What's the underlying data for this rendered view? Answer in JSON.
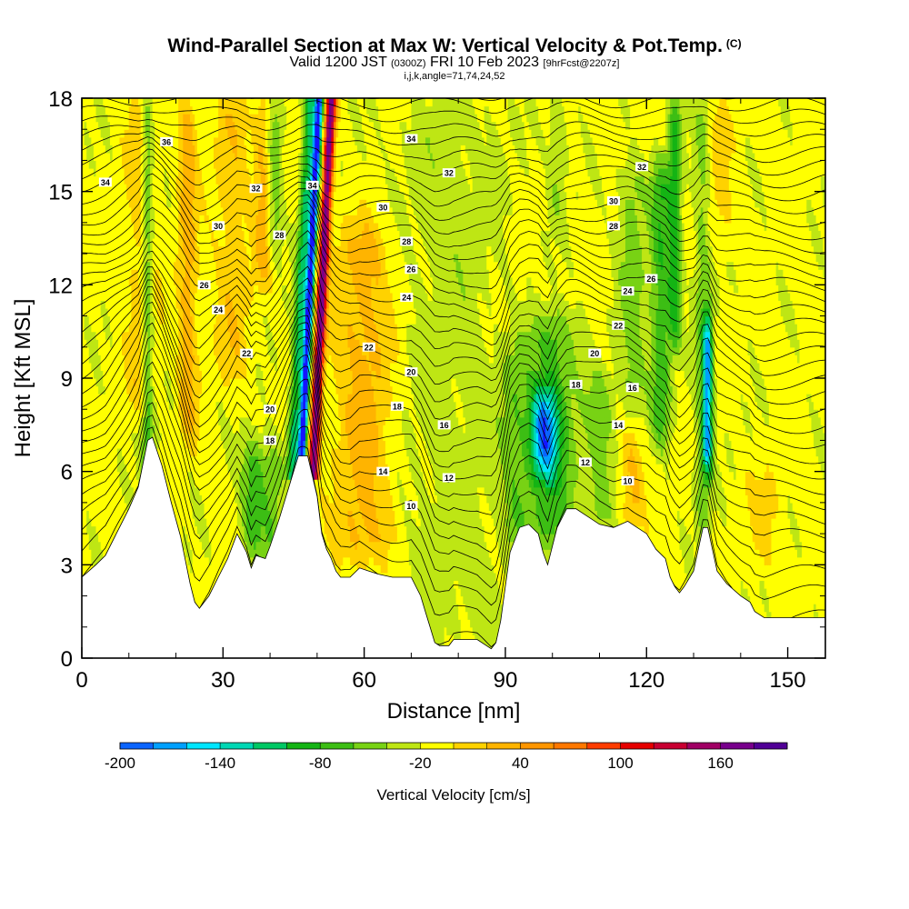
{
  "title": {
    "main": "Wind-Parallel Section at Max W: Vertical Velocity & Pot.Temp.",
    "copyright": "(C)",
    "valid_prefix": "Valid 1200 JST",
    "valid_utc": "(0300Z)",
    "valid_date": "FRI 10 Feb 2023",
    "forecast": "[9hrFcst@2207z]",
    "indices": "i,j,k,angle=71,74,24,52"
  },
  "colors": {
    "colorbar": [
      "#1414ff",
      "#0a64ff",
      "#00a0ff",
      "#00e6ff",
      "#00d7b4",
      "#00c864",
      "#14b414",
      "#3cbe14",
      "#78d214",
      "#bee614",
      "#ffff00",
      "#ffd200",
      "#ffb400",
      "#ff9600",
      "#ff7800",
      "#ff3c00",
      "#e60000",
      "#c80032",
      "#a00064",
      "#78008c",
      "#500096"
    ],
    "terrain": "#ffffff",
    "contour": "#000000"
  },
  "chart_data": {
    "type": "heatmap",
    "field": "Vertical Velocity",
    "overlay": "Potential temperature contours",
    "xlabel": "Distance [nm]",
    "ylabel": "Height [Kft MSL]",
    "xlim": [
      0,
      158
    ],
    "ylim": [
      0,
      18
    ],
    "x_ticks": [
      0,
      30,
      60,
      90,
      120,
      150
    ],
    "y_ticks": [
      0,
      3,
      6,
      9,
      12,
      15,
      18
    ],
    "colorbar": {
      "label": "Vertical Velocity [cm/s]",
      "min": -200,
      "max": 200,
      "step": 20,
      "tick_labels": [
        "-200",
        "-140",
        "-80",
        "-20",
        "40",
        "100",
        "160"
      ]
    },
    "terrain_profile": [
      [
        0,
        2.6
      ],
      [
        3,
        3.0
      ],
      [
        5,
        3.3
      ],
      [
        8,
        4.2
      ],
      [
        10,
        4.8
      ],
      [
        12,
        5.5
      ],
      [
        14,
        7.0
      ],
      [
        15,
        7.1
      ],
      [
        17,
        6.2
      ],
      [
        19,
        5.0
      ],
      [
        21,
        3.9
      ],
      [
        23,
        2.4
      ],
      [
        24,
        1.8
      ],
      [
        25,
        1.6
      ],
      [
        27,
        2.0
      ],
      [
        29,
        2.6
      ],
      [
        31,
        3.2
      ],
      [
        33,
        4.0
      ],
      [
        35,
        3.4
      ],
      [
        36,
        2.9
      ],
      [
        37,
        3.3
      ],
      [
        39,
        3.2
      ],
      [
        40,
        3.6
      ],
      [
        42,
        4.5
      ],
      [
        44,
        5.5
      ],
      [
        46,
        6.5
      ],
      [
        48,
        6.5
      ],
      [
        50,
        5.2
      ],
      [
        51,
        4.0
      ],
      [
        52,
        3.5
      ],
      [
        53,
        3.2
      ],
      [
        54,
        2.8
      ],
      [
        55,
        2.6
      ],
      [
        57,
        2.6
      ],
      [
        59,
        2.9
      ],
      [
        61,
        2.8
      ],
      [
        63,
        2.7
      ],
      [
        66,
        2.6
      ],
      [
        70,
        2.6
      ],
      [
        72,
        2.0
      ],
      [
        73,
        1.5
      ],
      [
        74,
        1.0
      ],
      [
        75,
        0.5
      ],
      [
        76,
        0.4
      ],
      [
        78,
        0.4
      ],
      [
        79,
        0.6
      ],
      [
        81,
        0.6
      ],
      [
        84,
        0.6
      ],
      [
        86,
        0.4
      ],
      [
        87,
        0.3
      ],
      [
        88,
        0.5
      ],
      [
        89,
        1.2
      ],
      [
        90,
        2.3
      ],
      [
        91,
        3.4
      ],
      [
        93,
        4.2
      ],
      [
        95,
        4.3
      ],
      [
        97,
        4.0
      ],
      [
        98,
        3.4
      ],
      [
        99,
        3.0
      ],
      [
        100,
        3.6
      ],
      [
        101,
        4.2
      ],
      [
        103,
        4.8
      ],
      [
        105,
        4.8
      ],
      [
        107,
        4.6
      ],
      [
        110,
        4.3
      ],
      [
        113,
        4.2
      ],
      [
        116,
        4.4
      ],
      [
        118,
        4.2
      ],
      [
        120,
        4.0
      ],
      [
        122,
        3.5
      ],
      [
        124,
        3.2
      ],
      [
        125,
        2.6
      ],
      [
        126,
        2.3
      ],
      [
        127,
        2.1
      ],
      [
        128,
        2.3
      ],
      [
        130,
        2.8
      ],
      [
        131,
        3.5
      ],
      [
        132,
        4.2
      ],
      [
        133,
        4.2
      ],
      [
        134,
        3.5
      ],
      [
        135,
        2.8
      ],
      [
        137,
        2.4
      ],
      [
        140,
        2.0
      ],
      [
        142,
        1.8
      ],
      [
        143,
        1.5
      ],
      [
        145,
        1.3
      ],
      [
        147,
        1.3
      ],
      [
        150,
        1.3
      ],
      [
        158,
        1.3
      ]
    ],
    "theta_contour_labels": [
      {
        "text": "36",
        "x": 18,
        "y": 16.6
      },
      {
        "text": "34",
        "x": 5,
        "y": 15.3
      },
      {
        "text": "32",
        "x": 37,
        "y": 15.1
      },
      {
        "text": "34",
        "x": 49,
        "y": 15.2
      },
      {
        "text": "30",
        "x": 29,
        "y": 13.9
      },
      {
        "text": "28",
        "x": 42,
        "y": 13.6
      },
      {
        "text": "26",
        "x": 26,
        "y": 12.0
      },
      {
        "text": "24",
        "x": 29,
        "y": 11.2
      },
      {
        "text": "22",
        "x": 35,
        "y": 9.8
      },
      {
        "text": "20",
        "x": 40,
        "y": 8.0
      },
      {
        "text": "18",
        "x": 40,
        "y": 7.0
      },
      {
        "text": "34",
        "x": 70,
        "y": 16.7
      },
      {
        "text": "32",
        "x": 78,
        "y": 15.6
      },
      {
        "text": "30",
        "x": 64,
        "y": 14.5
      },
      {
        "text": "28",
        "x": 69,
        "y": 13.4
      },
      {
        "text": "26",
        "x": 70,
        "y": 12.5
      },
      {
        "text": "24",
        "x": 69,
        "y": 11.6
      },
      {
        "text": "22",
        "x": 61,
        "y": 10.0
      },
      {
        "text": "20",
        "x": 70,
        "y": 9.2
      },
      {
        "text": "18",
        "x": 67,
        "y": 8.1
      },
      {
        "text": "16",
        "x": 77,
        "y": 7.5
      },
      {
        "text": "14",
        "x": 64,
        "y": 6.0
      },
      {
        "text": "12",
        "x": 78,
        "y": 5.8
      },
      {
        "text": "10",
        "x": 70,
        "y": 4.9
      },
      {
        "text": "32",
        "x": 119,
        "y": 15.8
      },
      {
        "text": "30",
        "x": 113,
        "y": 14.7
      },
      {
        "text": "28",
        "x": 113,
        "y": 13.9
      },
      {
        "text": "26",
        "x": 121,
        "y": 12.2
      },
      {
        "text": "24",
        "x": 116,
        "y": 11.8
      },
      {
        "text": "22",
        "x": 114,
        "y": 10.7
      },
      {
        "text": "20",
        "x": 109,
        "y": 9.8
      },
      {
        "text": "18",
        "x": 105,
        "y": 8.8
      },
      {
        "text": "16",
        "x": 117,
        "y": 8.7
      },
      {
        "text": "14",
        "x": 114,
        "y": 7.5
      },
      {
        "text": "12",
        "x": 107,
        "y": 6.3
      },
      {
        "text": "10",
        "x": 116,
        "y": 5.7
      }
    ]
  }
}
